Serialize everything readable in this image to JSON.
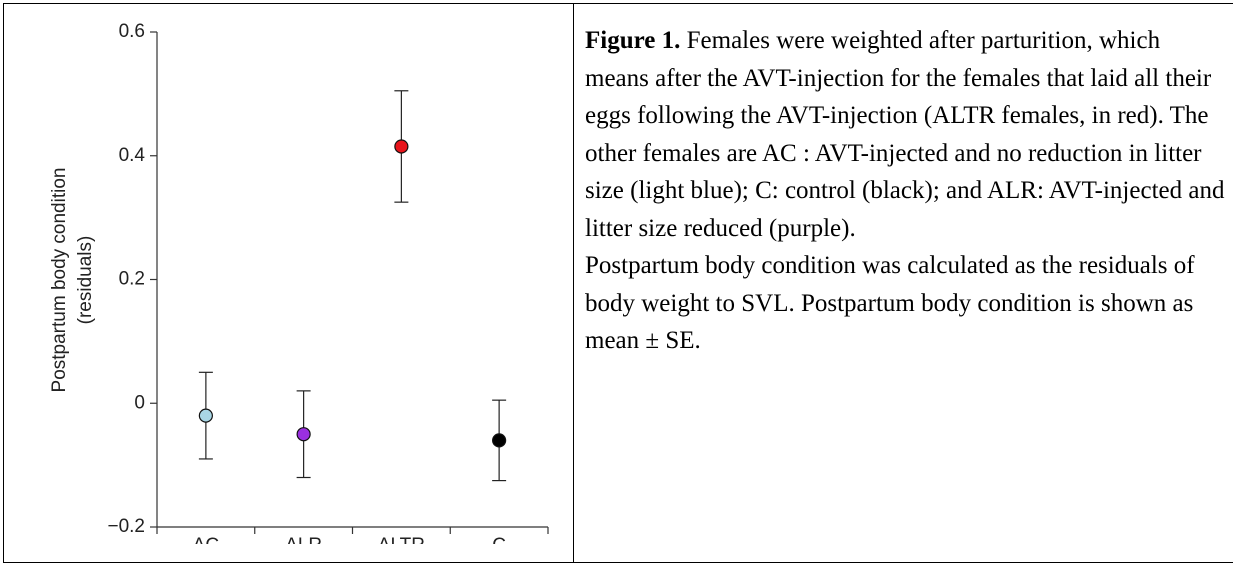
{
  "chart_data": {
    "type": "errorbar",
    "y_label": [
      "Postpartum body condition",
      "(residuals)"
    ],
    "categories": [
      "AC",
      "ALR",
      "ALTR",
      "C"
    ],
    "values": [
      -0.02,
      -0.05,
      0.415,
      -0.06
    ],
    "errors": [
      0.07,
      0.07,
      0.09,
      0.065
    ],
    "colors": [
      "#a9d6e5",
      "#9a2fe0",
      "#e8141b",
      "#000000"
    ],
    "ylim": [
      -0.2,
      0.6
    ],
    "yticks": [
      {
        "value": -0.2,
        "label": "−0.2"
      },
      0,
      0.2,
      0.4,
      0.6
    ]
  },
  "caption": {
    "label": "Figure 1.",
    "text": "Females were weighted after parturition, which means after the AVT-injection for the females that laid all their eggs following the AVT-injection (ALTR females, in red). The other females are AC :  AVT-injected and no reduction in litter size (light blue); C: control (black); and ALR: AVT-injected and litter size reduced (purple).",
    "text2": "Postpartum body condition was calculated as the residuals of body weight to SVL. Postpartum body condition is shown as mean ± SE."
  }
}
